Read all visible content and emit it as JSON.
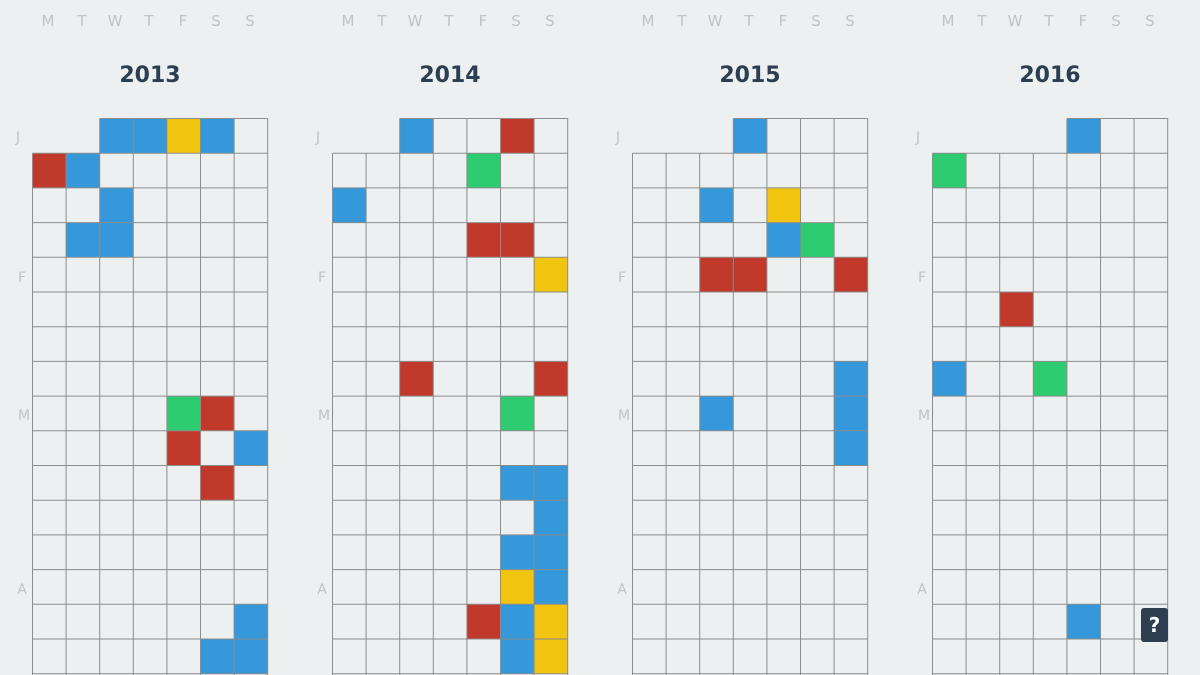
{
  "weekday_labels": [
    "M",
    "T",
    "W",
    "T",
    "F",
    "S",
    "S"
  ],
  "month_labels": [
    "J",
    "F",
    "M",
    "A"
  ],
  "help_button": "?",
  "colors": {
    "blue": "#3498db",
    "yellow": "#f1c40f",
    "red": "#c0392b",
    "green": "#2ecc71",
    "grid": "#8c8c8c",
    "background": "#ecf0f1"
  },
  "years": [
    {
      "year": "2013",
      "first_weekday": 2,
      "days": [
        {
          "week": 0,
          "day": 2,
          "color": "blue"
        },
        {
          "week": 0,
          "day": 3,
          "color": "blue"
        },
        {
          "week": 0,
          "day": 4,
          "color": "yellow"
        },
        {
          "week": 0,
          "day": 5,
          "color": "blue"
        },
        {
          "week": 1,
          "day": 0,
          "color": "red"
        },
        {
          "week": 1,
          "day": 1,
          "color": "blue"
        },
        {
          "week": 2,
          "day": 2,
          "color": "blue"
        },
        {
          "week": 3,
          "day": 1,
          "color": "blue"
        },
        {
          "week": 3,
          "day": 2,
          "color": "blue"
        },
        {
          "week": 8,
          "day": 4,
          "color": "green"
        },
        {
          "week": 8,
          "day": 5,
          "color": "red"
        },
        {
          "week": 9,
          "day": 4,
          "color": "red"
        },
        {
          "week": 9,
          "day": 6,
          "color": "blue"
        },
        {
          "week": 10,
          "day": 5,
          "color": "red"
        },
        {
          "week": 14,
          "day": 6,
          "color": "blue"
        },
        {
          "week": 15,
          "day": 5,
          "color": "blue"
        },
        {
          "week": 15,
          "day": 6,
          "color": "blue"
        }
      ]
    },
    {
      "year": "2014",
      "first_weekday": 2,
      "days": [
        {
          "week": 0,
          "day": 2,
          "color": "blue"
        },
        {
          "week": 0,
          "day": 5,
          "color": "red"
        },
        {
          "week": 1,
          "day": 4,
          "color": "green"
        },
        {
          "week": 2,
          "day": 0,
          "color": "blue"
        },
        {
          "week": 3,
          "day": 4,
          "color": "red"
        },
        {
          "week": 3,
          "day": 5,
          "color": "red"
        },
        {
          "week": 4,
          "day": 6,
          "color": "yellow"
        },
        {
          "week": 7,
          "day": 2,
          "color": "red"
        },
        {
          "week": 7,
          "day": 6,
          "color": "red"
        },
        {
          "week": 8,
          "day": 5,
          "color": "green"
        },
        {
          "week": 10,
          "day": 5,
          "color": "blue"
        },
        {
          "week": 10,
          "day": 6,
          "color": "blue"
        },
        {
          "week": 11,
          "day": 6,
          "color": "blue"
        },
        {
          "week": 12,
          "day": 5,
          "color": "blue"
        },
        {
          "week": 12,
          "day": 6,
          "color": "blue"
        },
        {
          "week": 13,
          "day": 5,
          "color": "yellow"
        },
        {
          "week": 13,
          "day": 6,
          "color": "blue"
        },
        {
          "week": 14,
          "day": 4,
          "color": "red"
        },
        {
          "week": 14,
          "day": 5,
          "color": "blue"
        },
        {
          "week": 14,
          "day": 6,
          "color": "yellow"
        },
        {
          "week": 15,
          "day": 5,
          "color": "blue"
        },
        {
          "week": 15,
          "day": 6,
          "color": "yellow"
        }
      ]
    },
    {
      "year": "2015",
      "first_weekday": 3,
      "days": [
        {
          "week": 0,
          "day": 3,
          "color": "blue"
        },
        {
          "week": 2,
          "day": 2,
          "color": "blue"
        },
        {
          "week": 2,
          "day": 4,
          "color": "yellow"
        },
        {
          "week": 3,
          "day": 4,
          "color": "blue"
        },
        {
          "week": 3,
          "day": 5,
          "color": "green"
        },
        {
          "week": 4,
          "day": 2,
          "color": "red"
        },
        {
          "week": 4,
          "day": 3,
          "color": "red"
        },
        {
          "week": 4,
          "day": 6,
          "color": "red"
        },
        {
          "week": 7,
          "day": 6,
          "color": "blue"
        },
        {
          "week": 8,
          "day": 2,
          "color": "blue"
        },
        {
          "week": 8,
          "day": 6,
          "color": "blue"
        },
        {
          "week": 9,
          "day": 6,
          "color": "blue"
        }
      ]
    },
    {
      "year": "2016",
      "first_weekday": 4,
      "days": [
        {
          "week": 0,
          "day": 4,
          "color": "blue"
        },
        {
          "week": 1,
          "day": 0,
          "color": "green"
        },
        {
          "week": 5,
          "day": 2,
          "color": "red"
        },
        {
          "week": 7,
          "day": 0,
          "color": "blue"
        },
        {
          "week": 7,
          "day": 3,
          "color": "green"
        },
        {
          "week": 14,
          "day": 4,
          "color": "blue"
        }
      ]
    }
  ]
}
